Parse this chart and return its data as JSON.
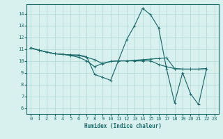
{
  "xlabel": "Humidex (Indice chaleur)",
  "xlim": [
    -0.5,
    23.5
  ],
  "ylim": [
    5.5,
    14.8
  ],
  "yticks": [
    6,
    7,
    8,
    9,
    10,
    11,
    12,
    13,
    14
  ],
  "xticks": [
    0,
    1,
    2,
    3,
    4,
    5,
    6,
    7,
    8,
    9,
    10,
    11,
    12,
    13,
    14,
    15,
    16,
    17,
    18,
    19,
    20,
    21,
    22,
    23
  ],
  "background_color": "#d8f0ee",
  "line_color": "#1a6b6b",
  "grid_color": "#aed8d4",
  "line1_x": [
    0,
    1,
    2,
    3,
    4,
    5,
    6,
    7,
    8,
    9,
    10,
    11,
    12,
    13,
    14,
    15,
    16,
    17,
    18,
    19,
    20,
    21,
    22
  ],
  "line1_y": [
    11.1,
    10.9,
    10.75,
    10.6,
    10.55,
    10.5,
    10.45,
    10.3,
    10.1,
    9.75,
    9.95,
    10.0,
    10.0,
    10.0,
    10.0,
    10.0,
    9.7,
    9.5,
    9.35,
    9.3,
    9.3,
    9.3,
    9.35
  ],
  "line2_x": [
    0,
    1,
    2,
    3,
    4,
    5,
    6,
    7,
    8,
    9,
    10,
    12,
    13,
    14,
    15,
    16,
    17,
    18,
    19,
    20,
    21,
    22
  ],
  "line2_y": [
    11.1,
    10.9,
    10.75,
    10.6,
    10.55,
    10.5,
    10.5,
    10.35,
    8.85,
    8.6,
    8.35,
    11.8,
    13.0,
    14.45,
    13.9,
    12.8,
    9.3,
    6.45,
    9.0,
    7.2,
    6.3,
    9.35
  ],
  "line3_x": [
    0,
    1,
    2,
    3,
    4,
    5,
    6,
    7,
    8,
    9,
    10,
    11,
    12,
    13,
    14,
    15,
    16,
    17,
    18,
    19,
    20,
    21,
    22
  ],
  "line3_y": [
    11.1,
    10.9,
    10.75,
    10.6,
    10.55,
    10.45,
    10.3,
    10.0,
    9.5,
    9.8,
    9.95,
    10.0,
    10.0,
    10.05,
    10.1,
    10.15,
    10.2,
    10.25,
    9.35,
    9.3,
    9.3,
    9.3,
    9.35
  ]
}
